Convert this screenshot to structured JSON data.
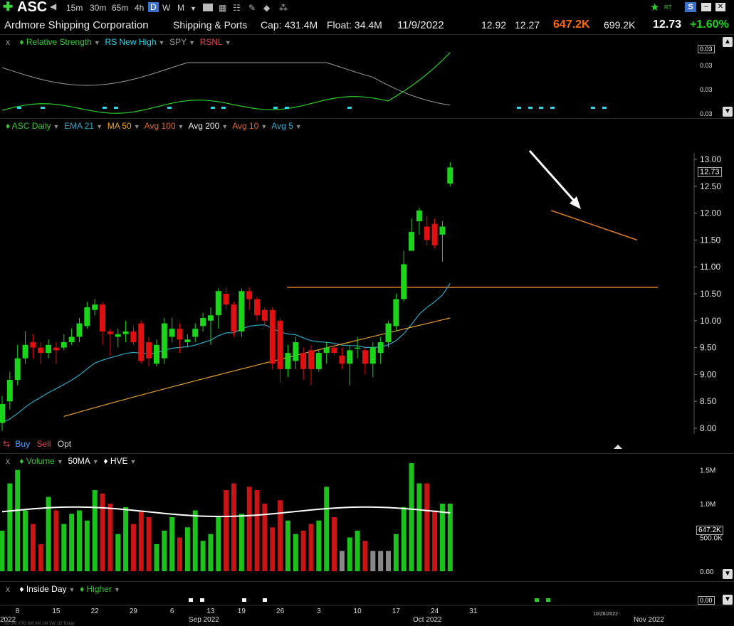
{
  "toolbar": {
    "ticker": "ASC",
    "intervals": [
      "15m",
      "30m",
      "65m",
      "4h",
      "D",
      "W",
      "M"
    ],
    "active_interval": "D",
    "tool_icons": [
      "add-icon",
      "speaker-icon",
      "chart-type-icon",
      "grid-icon",
      "checklist-icon",
      "pencil-icon",
      "tag-icon",
      "share-icon"
    ],
    "right_icons": [
      "star-icon",
      "rt-icon",
      "s-icon",
      "minimize-icon",
      "close-icon"
    ],
    "rt_label": "RT"
  },
  "info": {
    "company": "Ardmore Shipping Corporation",
    "sector": "Shipping & Ports",
    "cap": "Cap: 431.4M",
    "float": "Float: 34.4M",
    "date": "11/9/2022",
    "high": "12.92",
    "low": "12.27",
    "volume": "647.2K",
    "avg_volume": "699.2K",
    "price": "12.73",
    "change": "+1.60%",
    "colors": {
      "up": "#1bd51b",
      "volume": "#ff6a00"
    }
  },
  "rs_panel": {
    "legend": [
      {
        "label": "Relative Strength",
        "color": "#35c935"
      },
      {
        "label": "RS New High",
        "color": "#2fd5ea"
      },
      {
        "label": "SPY",
        "color": "#9a9a9a"
      },
      {
        "label": "RSNL",
        "color": "#e04848"
      }
    ],
    "axis_labels": [
      "0.03",
      "0.03",
      "0.03"
    ],
    "value_box": "0.03"
  },
  "price_panel": {
    "legend": [
      {
        "label": "ASC Daily",
        "color": "#35c935"
      },
      {
        "label": "EMA 21",
        "color": "#3aa8c8"
      },
      {
        "label": "MA 50",
        "color": "#f2a62a"
      },
      {
        "label": "Avg 100",
        "color": "#e0662a"
      },
      {
        "label": "Avg 200",
        "color": "#e8e8e8"
      },
      {
        "label": "Avg 10",
        "color": "#e0662a"
      },
      {
        "label": "Avg 5",
        "color": "#3aa8c8"
      }
    ],
    "buy": "Buy",
    "sell": "Sell",
    "opt": "Opt",
    "last_price_box": "12.73"
  },
  "volume_panel": {
    "legend": [
      {
        "label": "Volume",
        "color": "#35c935"
      },
      {
        "label": "50MA",
        "color": "#ffffff"
      },
      {
        "label": "HVE",
        "color": "#ffffff"
      }
    ],
    "value_box": "647.2K"
  },
  "bottom_panel": {
    "legend": [
      {
        "label": "Inside Day",
        "color": "#ffffff"
      },
      {
        "label": "Higher",
        "color": "#35c935"
      }
    ],
    "value_box": "0.00"
  },
  "x_axis": {
    "ticks": [
      "8",
      "15",
      "22",
      "29",
      "6",
      "13",
      "19",
      "26",
      "3",
      "10",
      "17",
      "24",
      "31"
    ],
    "month_labels": [
      "2022",
      "Sep 2022",
      "Oct 2022",
      "Nov 2022"
    ],
    "hover_date": "10/26/2022",
    "range_buttons": "5D 1M YTD 6M 3M 1M 1W 1D Today"
  },
  "chart_data": {
    "type": "candlestick",
    "x": [
      "08-04",
      "08-05",
      "08-08",
      "08-09",
      "08-10",
      "08-11",
      "08-12",
      "08-15",
      "08-16",
      "08-17",
      "08-18",
      "08-19",
      "08-22",
      "08-23",
      "08-24",
      "08-25",
      "08-26",
      "08-29",
      "08-30",
      "08-31",
      "09-01",
      "09-02",
      "09-06",
      "09-07",
      "09-08",
      "09-09",
      "09-12",
      "09-13",
      "09-14",
      "09-15",
      "09-16",
      "09-19",
      "09-20",
      "09-21",
      "09-22",
      "09-23",
      "09-26",
      "09-27",
      "09-28",
      "09-29",
      "09-30",
      "10-03",
      "10-04",
      "10-05",
      "10-06",
      "10-07",
      "10-10",
      "10-11",
      "10-12",
      "10-13",
      "10-14",
      "10-17",
      "10-18",
      "10-19",
      "10-20",
      "10-21",
      "10-24",
      "10-25",
      "10-26"
    ],
    "series": [
      {
        "name": "ASC Daily",
        "open": [
          8.1,
          8.5,
          8.9,
          9.3,
          9.6,
          9.5,
          9.4,
          9.5,
          9.5,
          9.6,
          9.7,
          9.9,
          10.2,
          10.3,
          9.8,
          9.7,
          9.75,
          9.8,
          9.95,
          9.6,
          9.2,
          9.3,
          9.7,
          9.85,
          9.6,
          9.7,
          9.9,
          10.0,
          10.1,
          10.5,
          10.3,
          9.8,
          10.55,
          10.4,
          10.2,
          10.2,
          10.0,
          9.1,
          9.25,
          9.4,
          9.45,
          9.1,
          9.4,
          9.5,
          9.35,
          9.2,
          9.5,
          9.45,
          9.2,
          9.4,
          9.6,
          9.9,
          10.4,
          11.3,
          11.85,
          11.75,
          11.8,
          11.6,
          12.55
        ],
        "close": [
          8.45,
          8.9,
          9.3,
          9.55,
          9.5,
          9.4,
          9.55,
          9.45,
          9.6,
          9.7,
          9.95,
          10.25,
          10.3,
          9.8,
          9.75,
          9.75,
          9.8,
          9.6,
          9.25,
          9.3,
          9.55,
          9.95,
          9.85,
          9.65,
          9.65,
          9.85,
          10.05,
          10.1,
          10.55,
          10.3,
          9.8,
          10.55,
          10.4,
          10.1,
          10.0,
          9.2,
          9.1,
          9.4,
          9.6,
          9.1,
          9.1,
          9.4,
          9.5,
          9.4,
          9.2,
          9.45,
          9.5,
          9.2,
          9.5,
          9.6,
          9.95,
          10.4,
          11.05,
          11.65,
          12.05,
          11.5,
          11.4,
          11.75,
          12.85
        ],
        "high": [
          8.6,
          9.05,
          9.55,
          9.8,
          9.75,
          9.6,
          9.65,
          9.6,
          9.75,
          9.85,
          10.05,
          10.35,
          10.4,
          10.35,
          9.85,
          9.85,
          10.0,
          9.9,
          10.0,
          9.7,
          9.65,
          10.05,
          10.05,
          9.95,
          9.75,
          9.95,
          10.15,
          10.25,
          10.6,
          10.62,
          10.35,
          10.6,
          10.62,
          10.45,
          10.25,
          10.25,
          10.05,
          9.55,
          9.7,
          9.5,
          9.55,
          9.45,
          9.6,
          9.6,
          9.5,
          9.55,
          9.7,
          9.5,
          9.6,
          9.7,
          10.0,
          10.5,
          11.3,
          11.9,
          12.1,
          11.95,
          11.9,
          11.85,
          12.95
        ],
        "low": [
          7.95,
          8.35,
          8.8,
          9.2,
          9.3,
          9.2,
          9.3,
          9.2,
          9.45,
          9.55,
          9.6,
          9.85,
          10.1,
          9.55,
          9.35,
          9.5,
          9.6,
          9.55,
          9.2,
          9.15,
          9.15,
          9.2,
          9.6,
          9.4,
          9.5,
          9.6,
          9.8,
          9.55,
          9.85,
          10.2,
          9.7,
          9.7,
          10.2,
          10.0,
          9.9,
          9.1,
          8.85,
          8.95,
          9.1,
          8.9,
          8.8,
          9.05,
          9.2,
          9.35,
          9.1,
          8.8,
          9.3,
          9.0,
          8.95,
          9.2,
          9.5,
          9.8,
          10.35,
          11.3,
          11.6,
          11.4,
          11.35,
          11.1,
          12.5
        ]
      }
    ],
    "ema21_endpoints": [
      [
        "08-04",
        8.15
      ],
      [
        "10-26",
        10.85
      ]
    ],
    "ma50_endpoints": [
      [
        "08-10",
        7.85
      ],
      [
        "10-26",
        10.05
      ]
    ],
    "resistance_level": 10.62,
    "trendline": [
      [
        "10-18",
        12.05
      ],
      [
        "10-27",
        11.5
      ]
    ],
    "volume": {
      "unit": "M",
      "values": [
        0.6,
        1.3,
        1.5,
        0.9,
        0.7,
        0.4,
        1.1,
        0.9,
        0.7,
        0.85,
        0.9,
        0.75,
        1.2,
        1.15,
        1.0,
        0.55,
        0.95,
        0.7,
        0.9,
        0.8,
        0.4,
        0.6,
        0.8,
        0.5,
        0.65,
        0.9,
        0.45,
        0.55,
        0.8,
        1.2,
        1.3,
        0.85,
        1.25,
        1.2,
        1.0,
        0.65,
        1.05,
        0.75,
        0.55,
        0.6,
        0.7,
        0.75,
        1.25,
        0.8,
        0.3,
        0.5,
        0.6,
        0.45,
        0.3,
        0.3,
        0.3,
        0.55,
        0.95,
        1.6,
        1.3,
        1.3,
        0.9,
        1.0,
        1.0
      ],
      "ma50": 0.9
    },
    "ylim": [
      7.8,
      13.3
    ],
    "yticks": [
      "8.00",
      "8.50",
      "9.00",
      "9.50",
      "10.00",
      "10.50",
      "11.00",
      "11.50",
      "12.00",
      "12.50",
      "13.00"
    ],
    "volume_ticks": [
      "1.5M",
      "1.0M",
      "500.0K",
      "0.00"
    ]
  }
}
